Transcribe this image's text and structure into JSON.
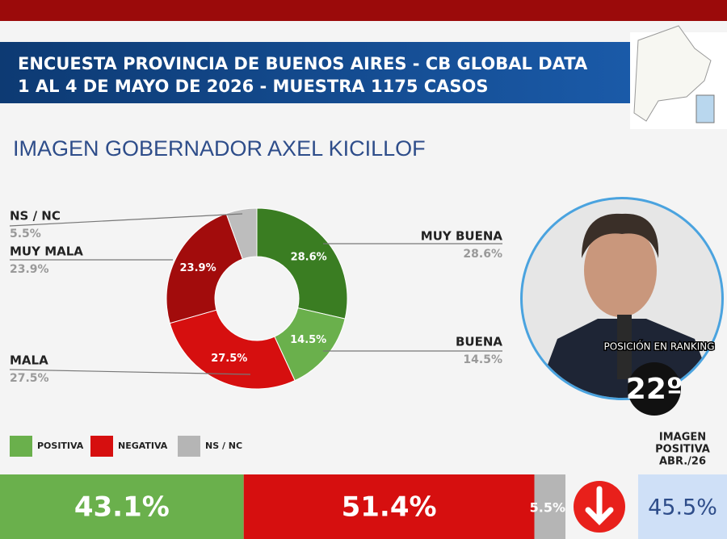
{
  "header": {
    "line1": "ENCUESTA PROVINCIA DE BUENOS AIRES - CB GLOBAL DATA",
    "line2": "1 AL 4 DE MAYO DE 2026 - MUESTRA 1175 CASOS"
  },
  "chart_data": [
    {
      "type": "pie",
      "title": "IMAGEN GOBERNADOR  AXEL KICILLOF",
      "categories": [
        "MUY BUENA",
        "BUENA",
        "MALA",
        "MUY MALA",
        "NS / NC"
      ],
      "values": [
        28.6,
        14.5,
        27.5,
        23.9,
        5.5
      ],
      "value_labels": [
        "28.6%",
        "14.5%",
        "27.5%",
        "23.9%",
        "5.5%"
      ],
      "colors": [
        "#3a7d22",
        "#6ab04c",
        "#d60f0f",
        "#a20c0c",
        "#bdbdbd"
      ]
    },
    {
      "type": "stacked-bar",
      "categories": [
        "POSITIVA",
        "NEGATIVA",
        "NS / NC"
      ],
      "values": [
        43.1,
        51.4,
        5.5
      ],
      "value_labels": [
        "43.1%",
        "51.4%",
        "5.5%"
      ],
      "colors": [
        "#6ab04c",
        "#d60f0f",
        "#b5b5b5"
      ]
    }
  ],
  "ranking": {
    "label": "POSICIÓN EN RANKING",
    "value": "22º"
  },
  "previous": {
    "label": [
      "IMAGEN",
      "POSITIVA",
      "ABR./26"
    ],
    "value": 45.5,
    "value_label": "45.5%"
  }
}
